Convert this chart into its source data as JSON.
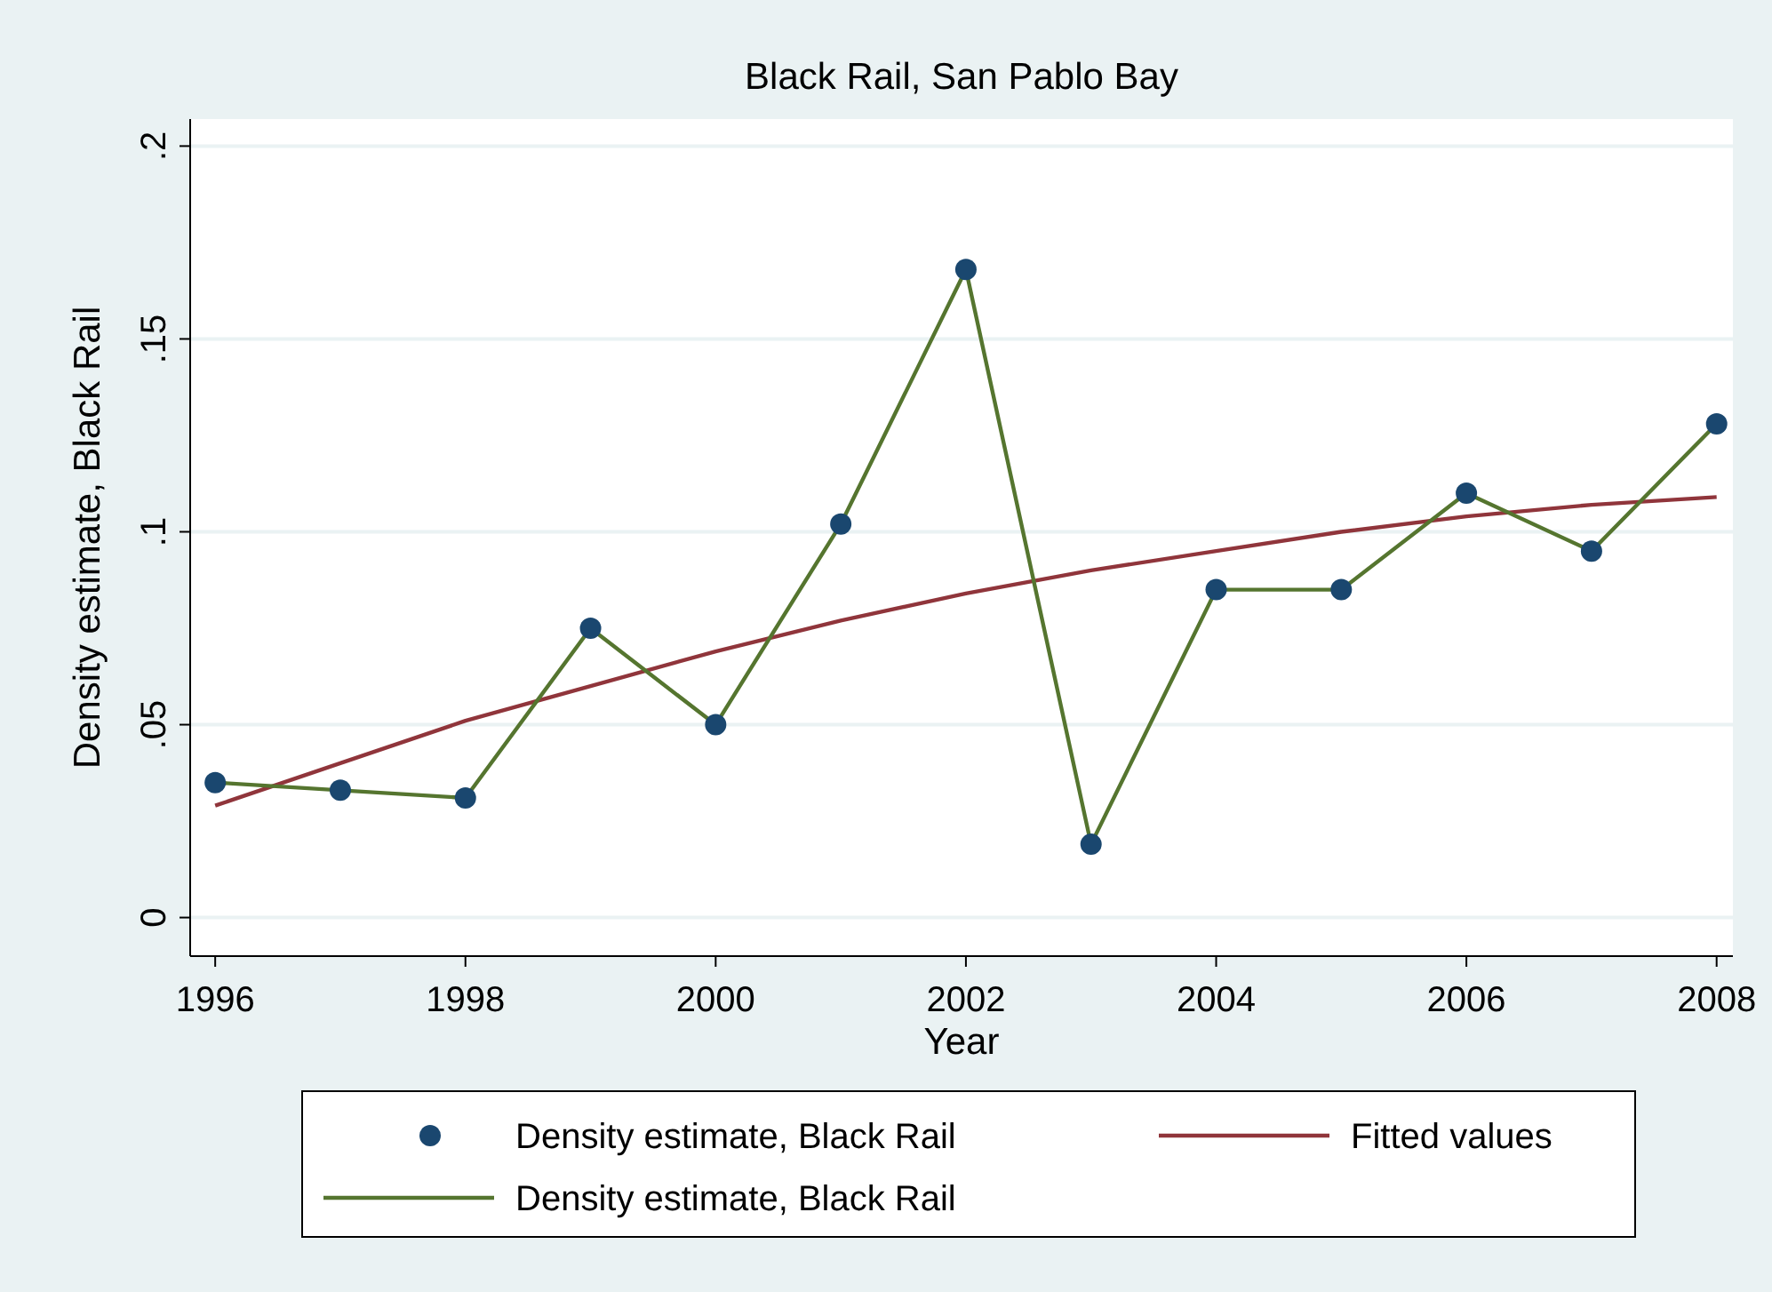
{
  "chart_data": {
    "type": "line",
    "title": "Black Rail, San Pablo Bay",
    "xlabel": "Year",
    "ylabel": "Density estimate, Black Rail",
    "x": [
      1996,
      1997,
      1998,
      1999,
      2000,
      2001,
      2002,
      2003,
      2004,
      2005,
      2006,
      2007,
      2008
    ],
    "series": [
      {
        "type": "scatter",
        "name": "Density estimate, Black Rail",
        "color": "#1a476f",
        "marker": "circle",
        "values": [
          0.035,
          0.033,
          0.031,
          0.075,
          0.05,
          0.102,
          0.168,
          0.019,
          0.085,
          0.085,
          0.11,
          0.095,
          0.128
        ]
      },
      {
        "name": "Fitted values",
        "color": "#90353b",
        "values": [
          0.029,
          0.04,
          0.051,
          0.06,
          0.069,
          0.077,
          0.084,
          0.09,
          0.095,
          0.1,
          0.104,
          0.107,
          0.109
        ]
      },
      {
        "name": "Density estimate, Black Rail",
        "color": "#55752f",
        "values": [
          0.035,
          0.033,
          0.031,
          0.075,
          0.05,
          0.102,
          0.168,
          0.019,
          0.085,
          0.085,
          0.11,
          0.095,
          0.128
        ]
      }
    ],
    "xlim": [
      1995.8,
      2008.13
    ],
    "xticks": [
      1996,
      1998,
      2000,
      2002,
      2004,
      2006,
      2008
    ],
    "ylim": [
      -0.01,
      0.207
    ],
    "yticks": [
      0,
      {
        "value": 0.05,
        "label": ".05"
      },
      {
        "value": 0.1,
        "label": ".1"
      },
      {
        "value": 0.15,
        "label": ".15"
      },
      {
        "value": 0.2,
        "label": ".2"
      }
    ],
    "grid": "y",
    "legend": "bottom"
  }
}
